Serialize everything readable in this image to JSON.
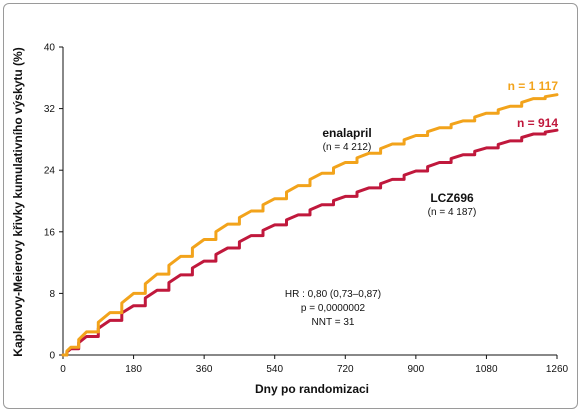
{
  "chart_data": {
    "type": "line",
    "xlabel": "Dny po randomizaci",
    "ylabel": "Kaplanovy-Meierovy křivky kumulativního výskytu (%)",
    "xlim": [
      0,
      1260
    ],
    "ylim": [
      0,
      40
    ],
    "x_ticks": [
      "0",
      "180",
      "360",
      "540",
      "720",
      "900",
      "1080",
      "1260"
    ],
    "y_ticks": [
      "0",
      "8",
      "16",
      "24",
      "32",
      "40"
    ],
    "grid": false,
    "series": [
      {
        "name": "enalapril",
        "sublabel": "(n = 4 212)",
        "end_label": "n = 1 117",
        "color": "#f2a31b",
        "x": [
          0,
          20,
          60,
          120,
          180,
          240,
          300,
          360,
          420,
          480,
          540,
          600,
          660,
          720,
          780,
          840,
          900,
          960,
          1020,
          1080,
          1140,
          1200,
          1260
        ],
        "y": [
          0,
          1,
          3,
          5.5,
          8,
          10.5,
          12.8,
          15,
          17,
          18.7,
          20.3,
          22,
          23.6,
          25,
          26.2,
          27.4,
          28.5,
          29.5,
          30.4,
          31.4,
          32.3,
          33.3,
          33.8
        ]
      },
      {
        "name": "LCZ696",
        "sublabel": "(n = 4 187)",
        "end_label": "n = 914",
        "color": "#c0183c",
        "x": [
          0,
          20,
          60,
          120,
          180,
          240,
          300,
          360,
          420,
          480,
          540,
          600,
          660,
          720,
          780,
          840,
          900,
          960,
          1020,
          1080,
          1140,
          1200,
          1260
        ],
        "y": [
          0,
          0.8,
          2.4,
          4.5,
          6.4,
          8.4,
          10.4,
          12.2,
          13.9,
          15.5,
          16.9,
          18.2,
          19.5,
          20.6,
          21.7,
          22.8,
          23.9,
          25,
          26,
          26.9,
          27.8,
          28.7,
          29.2
        ]
      }
    ],
    "annotations": [
      "HR : 0,80 (0,73–0,87)",
      "p = 0,0000002",
      "NNT = 31"
    ]
  }
}
